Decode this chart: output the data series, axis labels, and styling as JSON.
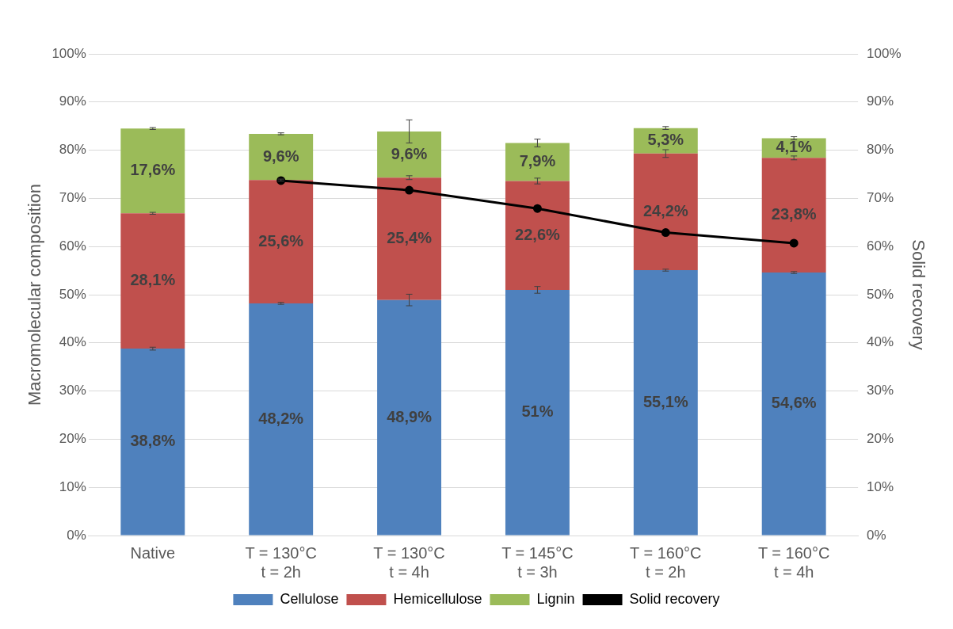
{
  "chart_data": {
    "type": "bar",
    "stacked": true,
    "ylabel": "Macromolecular composition",
    "y2label": "Solid recovery",
    "categories": [
      "Native",
      "T = 130°C\nt = 2h",
      "T = 130°C\nt = 4h",
      "T = 145°C\nt = 3h",
      "T = 160°C\nt = 2h",
      "T = 160°C\nt = 4h"
    ],
    "series": [
      {
        "name": "Cellulose",
        "color": "#4f81bd",
        "values": [
          38.8,
          48.2,
          48.9,
          51,
          55.1,
          54.6
        ],
        "errors": [
          0.3,
          0.2,
          1.2,
          0.7,
          0.2,
          0.2
        ],
        "value_labels": [
          "38,8%",
          "48,2%",
          "48,9%",
          "51%",
          "55,1%",
          "54,6%"
        ]
      },
      {
        "name": "Hemicellulose",
        "color": "#c0504d",
        "values": [
          28.1,
          25.6,
          25.4,
          22.6,
          24.2,
          23.8
        ],
        "errors": [
          0.2,
          0.2,
          0.4,
          0.6,
          0.8,
          0.4
        ],
        "value_labels": [
          "28,1%",
          "25,6%",
          "25,4%",
          "22,6%",
          "24,2%",
          "23,8%"
        ]
      },
      {
        "name": "Lignin",
        "color": "#9bbb59",
        "values": [
          17.6,
          9.6,
          9.6,
          7.9,
          5.3,
          4.1
        ],
        "errors": [
          0.2,
          0.2,
          2.4,
          0.8,
          0.3,
          0.3
        ],
        "value_labels": [
          "17,6%",
          "9,6%",
          "9,6%",
          "7,9%",
          "5,3%",
          "4,1%"
        ]
      },
      {
        "name": "Solid recovery",
        "type": "line",
        "axis": "y2",
        "color": "#000000",
        "marker": "circle",
        "values": [
          null,
          73.7,
          71.7,
          67.9,
          62.9,
          60.7
        ]
      }
    ],
    "ylim": [
      0,
      100
    ],
    "yticks": [
      {
        "value": 0,
        "label": "0%"
      },
      {
        "value": 10,
        "label": "10%"
      },
      {
        "value": 20,
        "label": "20%"
      },
      {
        "value": 30,
        "label": "30%"
      },
      {
        "value": 40,
        "label": "40%"
      },
      {
        "value": 50,
        "label": "50%"
      },
      {
        "value": 60,
        "label": "60%"
      },
      {
        "value": 70,
        "label": "70%"
      },
      {
        "value": 80,
        "label": "80%"
      },
      {
        "value": 90,
        "label": "90%"
      },
      {
        "value": 100,
        "label": "100%"
      }
    ],
    "y2lim": [
      0,
      100
    ],
    "y2ticks": [
      {
        "value": 0,
        "label": "0%"
      },
      {
        "value": 10,
        "label": "10%"
      },
      {
        "value": 20,
        "label": "20%"
      },
      {
        "value": 30,
        "label": "30%"
      },
      {
        "value": 40,
        "label": "40%"
      },
      {
        "value": 50,
        "label": "50%"
      },
      {
        "value": 60,
        "label": "60%"
      },
      {
        "value": 70,
        "label": "70%"
      },
      {
        "value": 80,
        "label": "80%"
      },
      {
        "value": 90,
        "label": "90%"
      },
      {
        "value": 100,
        "label": "100%"
      }
    ],
    "grid": "y",
    "legend": "bottom"
  }
}
